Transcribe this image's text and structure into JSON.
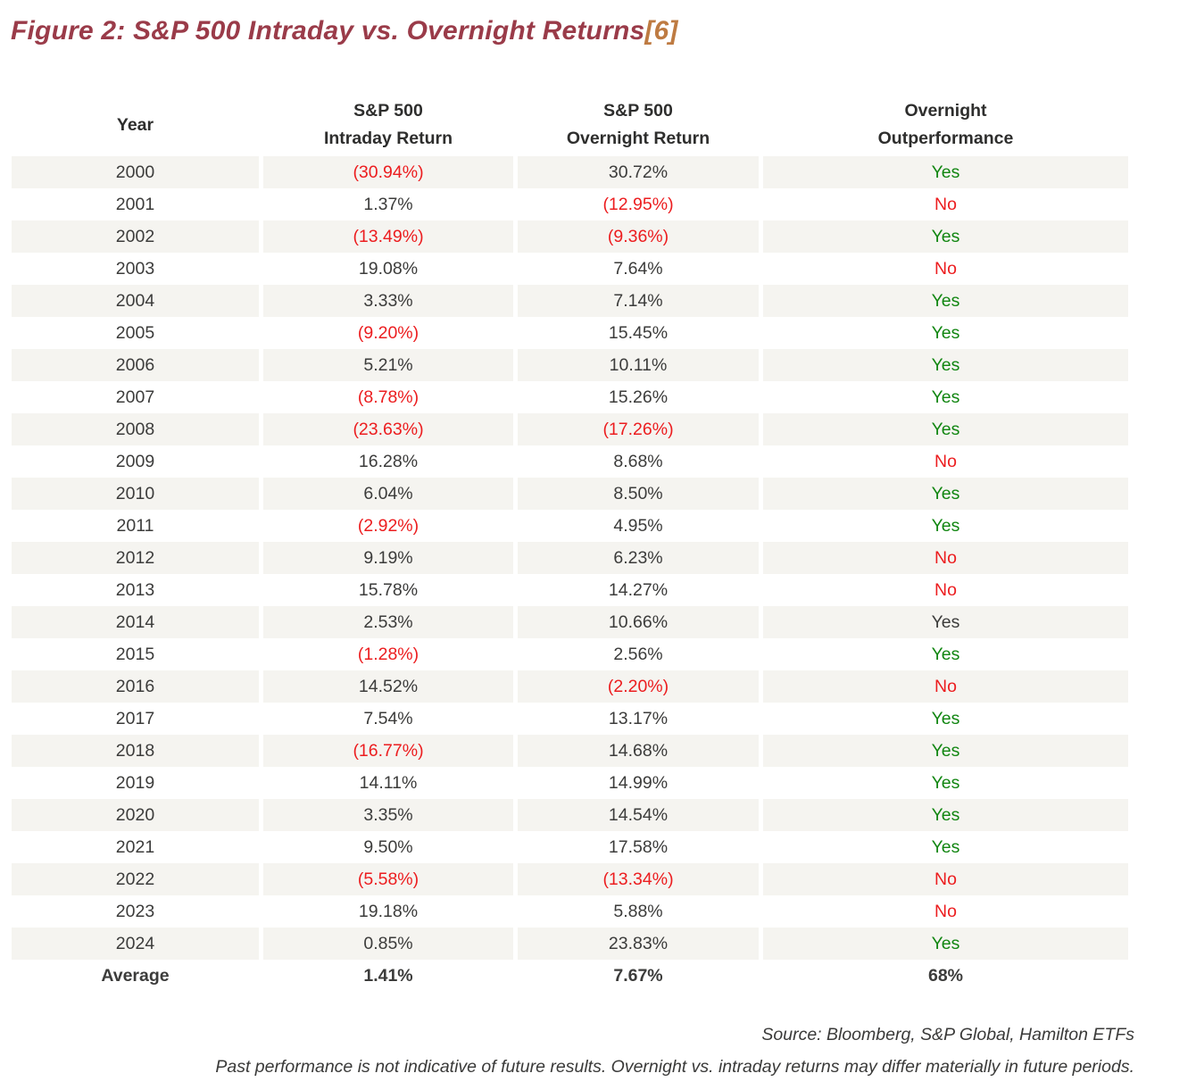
{
  "title": {
    "text": "Figure 2: S&P 500 Intraday vs. Overnight Returns",
    "footnote_ref": "[6]"
  },
  "table": {
    "headers": {
      "col1": "Year",
      "col2_line1": "S&P 500",
      "col2_line2": "Intraday Return",
      "col3_line1": "S&P 500",
      "col3_line2": "Overnight Return",
      "col4_line1": "Overnight",
      "col4_line2": "Outperformance"
    },
    "rows": [
      {
        "year": "2000",
        "intraday": "(30.94%)",
        "overnight": "30.72%",
        "outperf": "Yes",
        "outperf_tone": "green",
        "shaded": true,
        "bold": false
      },
      {
        "year": "2001",
        "intraday": "1.37%",
        "overnight": "(12.95%)",
        "outperf": "No",
        "outperf_tone": "red",
        "shaded": false,
        "bold": false
      },
      {
        "year": "2002",
        "intraday": "(13.49%)",
        "overnight": "(9.36%)",
        "outperf": "Yes",
        "outperf_tone": "green",
        "shaded": true,
        "bold": false
      },
      {
        "year": "2003",
        "intraday": "19.08%",
        "overnight": "7.64%",
        "outperf": "No",
        "outperf_tone": "red",
        "shaded": false,
        "bold": false
      },
      {
        "year": "2004",
        "intraday": "3.33%",
        "overnight": "7.14%",
        "outperf": "Yes",
        "outperf_tone": "green",
        "shaded": true,
        "bold": false
      },
      {
        "year": "2005",
        "intraday": "(9.20%)",
        "overnight": "15.45%",
        "outperf": "Yes",
        "outperf_tone": "green",
        "shaded": false,
        "bold": false
      },
      {
        "year": "2006",
        "intraday": "5.21%",
        "overnight": "10.11%",
        "outperf": "Yes",
        "outperf_tone": "green",
        "shaded": true,
        "bold": false
      },
      {
        "year": "2007",
        "intraday": "(8.78%)",
        "overnight": "15.26%",
        "outperf": "Yes",
        "outperf_tone": "green",
        "shaded": false,
        "bold": false
      },
      {
        "year": "2008",
        "intraday": "(23.63%)",
        "overnight": "(17.26%)",
        "outperf": "Yes",
        "outperf_tone": "green",
        "shaded": true,
        "bold": false
      },
      {
        "year": "2009",
        "intraday": "16.28%",
        "overnight": "8.68%",
        "outperf": "No",
        "outperf_tone": "red",
        "shaded": false,
        "bold": false
      },
      {
        "year": "2010",
        "intraday": "6.04%",
        "overnight": "8.50%",
        "outperf": "Yes",
        "outperf_tone": "green",
        "shaded": true,
        "bold": false
      },
      {
        "year": "2011",
        "intraday": "(2.92%)",
        "overnight": "4.95%",
        "outperf": "Yes",
        "outperf_tone": "green",
        "shaded": false,
        "bold": false
      },
      {
        "year": "2012",
        "intraday": "9.19%",
        "overnight": "6.23%",
        "outperf": "No",
        "outperf_tone": "red",
        "shaded": true,
        "bold": false
      },
      {
        "year": "2013",
        "intraday": "15.78%",
        "overnight": "14.27%",
        "outperf": "No",
        "outperf_tone": "red",
        "shaded": false,
        "bold": false
      },
      {
        "year": "2014",
        "intraday": "2.53%",
        "overnight": "10.66%",
        "outperf": "Yes",
        "outperf_tone": "plain",
        "shaded": true,
        "bold": false
      },
      {
        "year": "2015",
        "intraday": "(1.28%)",
        "overnight": "2.56%",
        "outperf": "Yes",
        "outperf_tone": "green",
        "shaded": false,
        "bold": false
      },
      {
        "year": "2016",
        "intraday": "14.52%",
        "overnight": "(2.20%)",
        "outperf": "No",
        "outperf_tone": "red",
        "shaded": true,
        "bold": false
      },
      {
        "year": "2017",
        "intraday": "7.54%",
        "overnight": "13.17%",
        "outperf": "Yes",
        "outperf_tone": "green",
        "shaded": false,
        "bold": false
      },
      {
        "year": "2018",
        "intraday": "(16.77%)",
        "overnight": "14.68%",
        "outperf": "Yes",
        "outperf_tone": "green",
        "shaded": true,
        "bold": false
      },
      {
        "year": "2019",
        "intraday": "14.11%",
        "overnight": "14.99%",
        "outperf": "Yes",
        "outperf_tone": "green",
        "shaded": false,
        "bold": false
      },
      {
        "year": "2020",
        "intraday": "3.35%",
        "overnight": "14.54%",
        "outperf": "Yes",
        "outperf_tone": "green",
        "shaded": true,
        "bold": false
      },
      {
        "year": "2021",
        "intraday": "9.50%",
        "overnight": "17.58%",
        "outperf": "Yes",
        "outperf_tone": "green",
        "shaded": false,
        "bold": false
      },
      {
        "year": "2022",
        "intraday": "(5.58%)",
        "overnight": "(13.34%)",
        "outperf": "No",
        "outperf_tone": "red",
        "shaded": true,
        "bold": false
      },
      {
        "year": "2023",
        "intraday": "19.18%",
        "overnight": "5.88%",
        "outperf": "No",
        "outperf_tone": "red",
        "shaded": false,
        "bold": false
      },
      {
        "year": "2024",
        "intraday": "0.85%",
        "overnight": "23.83%",
        "outperf": "Yes",
        "outperf_tone": "green",
        "shaded": true,
        "bold": false
      },
      {
        "year": "Average",
        "intraday": "1.41%",
        "overnight": "7.67%",
        "outperf": "68%",
        "outperf_tone": "plain",
        "shaded": false,
        "bold": true
      }
    ]
  },
  "footer": {
    "source": "Source: Bloomberg, S&P Global, Hamilton ETFs",
    "disclaimer": "Past performance is not indicative of future results. Overnight vs. intraday returns may differ materially in future periods."
  },
  "colors": {
    "title_maroon": "#9A3B49",
    "footnote_gold": "#BE7B42",
    "negative_red": "#EC1D1F",
    "positive_green": "#118611",
    "text_dark": "#3C3C3B",
    "row_shade": "#F5F4F0"
  }
}
